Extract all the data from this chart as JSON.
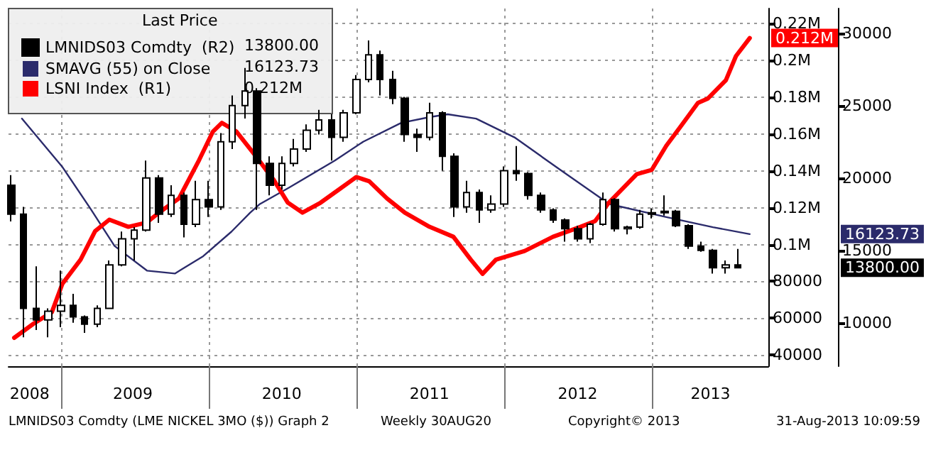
{
  "chart_data": {
    "type": "line",
    "legend_title": "Last Price",
    "legend": "top left",
    "grid": true,
    "xlim": [
      "2008-08-25",
      "2013-10-15"
    ],
    "xticks": [
      {
        "value": "2008-10-16",
        "label": "2008"
      },
      {
        "value": "2009-01-01",
        "label": null
      },
      {
        "value": "2009-06-28",
        "label": "2009"
      },
      {
        "value": "2010-01-01",
        "label": null
      },
      {
        "value": "2010-07-01",
        "label": "2010"
      },
      {
        "value": "2011-01-01",
        "label": null
      },
      {
        "value": "2011-07-01",
        "label": "2011"
      },
      {
        "value": "2012-01-01",
        "label": null
      },
      {
        "value": "2012-07-01",
        "label": "2012"
      },
      {
        "value": "2013-01-01",
        "label": null
      },
      {
        "value": "2013-05-25",
        "label": "2013"
      }
    ],
    "ylim": [
      34000,
      228000
    ],
    "yticks": [
      40000,
      60000,
      80000,
      {
        "value": 100000,
        "label": "0.1M"
      },
      {
        "value": 120000,
        "label": "0.12M"
      },
      {
        "value": 140000,
        "label": "0.14M"
      },
      {
        "value": 160000,
        "label": "0.16M"
      },
      {
        "value": 180000,
        "label": "0.18M"
      },
      {
        "value": 200000,
        "label": "0.2M"
      },
      {
        "value": 220000,
        "label": "0.22M"
      }
    ],
    "y2lim": [
      7000,
      31700
    ],
    "y2ticks": [
      10000,
      15000,
      20000,
      25000,
      30000
    ],
    "series": [
      {
        "name": "LMNIDS03 Comdty  (R2)",
        "type": "candlestick",
        "axis": "y2",
        "color": "#000000",
        "x": [
          "2008-09",
          "2008-10",
          "2008-11",
          "2008-12",
          "2009-01",
          "2009-02",
          "2009-03",
          "2009-04",
          "2009-05",
          "2009-06",
          "2009-07",
          "2009-08",
          "2009-09",
          "2009-10",
          "2009-11",
          "2009-12",
          "2010-01",
          "2010-02",
          "2010-03",
          "2010-04",
          "2010-05",
          "2010-06",
          "2010-07",
          "2010-08",
          "2010-09",
          "2010-10",
          "2010-11",
          "2010-12",
          "2011-01",
          "2011-02",
          "2011-03",
          "2011-04",
          "2011-05",
          "2011-06",
          "2011-07",
          "2011-08",
          "2011-09",
          "2011-10",
          "2011-11",
          "2011-12",
          "2012-01",
          "2012-02",
          "2012-03",
          "2012-04",
          "2012-05",
          "2012-06",
          "2012-07",
          "2012-08",
          "2012-09",
          "2012-10",
          "2012-11",
          "2012-12",
          "2013-01",
          "2013-02",
          "2013-03",
          "2013-04",
          "2013-05",
          "2013-06",
          "2013-07",
          "2013-08"
        ],
        "ohlc": [
          [
            19500,
            20200,
            17000,
            17500
          ],
          [
            17500,
            18000,
            9000,
            11000
          ],
          [
            11000,
            13900,
            9500,
            10200
          ],
          [
            10200,
            11000,
            9000,
            10800
          ],
          [
            10800,
            13600,
            9700,
            11200
          ],
          [
            11200,
            12000,
            10000,
            10400
          ],
          [
            10400,
            10500,
            9300,
            9900
          ],
          [
            9900,
            11200,
            9700,
            11000
          ],
          [
            11000,
            14300,
            11000,
            14000
          ],
          [
            14000,
            16300,
            13900,
            15800
          ],
          [
            15800,
            16600,
            14300,
            16400
          ],
          [
            16400,
            21200,
            16300,
            20000
          ],
          [
            20000,
            20200,
            16900,
            17500
          ],
          [
            17500,
            19500,
            17300,
            18800
          ],
          [
            18800,
            19000,
            15900,
            16800
          ],
          [
            16800,
            19800,
            16600,
            18500
          ],
          [
            18500,
            19800,
            17300,
            18000
          ],
          [
            18000,
            23100,
            17800,
            22500
          ],
          [
            22500,
            25700,
            22000,
            25000
          ],
          [
            25000,
            27600,
            24100,
            26000
          ],
          [
            26000,
            26200,
            17800,
            21000
          ],
          [
            21000,
            21500,
            18800,
            19500
          ],
          [
            19500,
            21500,
            19200,
            21000
          ],
          [
            21000,
            22700,
            20800,
            22000
          ],
          [
            22000,
            23700,
            21800,
            23300
          ],
          [
            23300,
            24700,
            23000,
            24000
          ],
          [
            24000,
            24400,
            21200,
            22800
          ],
          [
            22800,
            24700,
            22500,
            24500
          ],
          [
            24500,
            27100,
            24400,
            26800
          ],
          [
            26800,
            29500,
            26600,
            28500
          ],
          [
            28500,
            28800,
            25700,
            26800
          ],
          [
            26800,
            27400,
            25100,
            25500
          ],
          [
            25500,
            25600,
            22500,
            23000
          ],
          [
            23000,
            23400,
            21800,
            22800
          ],
          [
            22800,
            25200,
            22600,
            24500
          ],
          [
            24500,
            24600,
            20500,
            21500
          ],
          [
            21500,
            21700,
            17300,
            18000
          ],
          [
            18000,
            19800,
            17600,
            19000
          ],
          [
            19000,
            19200,
            16900,
            17800
          ],
          [
            17800,
            18800,
            17600,
            18200
          ],
          [
            18200,
            20800,
            18000,
            20500
          ],
          [
            20500,
            22200,
            19800,
            20300
          ],
          [
            20300,
            20400,
            18500,
            18800
          ],
          [
            18800,
            19000,
            17600,
            17800
          ],
          [
            17800,
            17900,
            16900,
            17100
          ],
          [
            17100,
            17200,
            15600,
            16500
          ],
          [
            16500,
            16700,
            15600,
            15800
          ],
          [
            15800,
            16900,
            15500,
            16800
          ],
          [
            16800,
            19000,
            16700,
            18500
          ],
          [
            18500,
            18600,
            16300,
            16500
          ],
          [
            16500,
            16700,
            16100,
            16600
          ],
          [
            16600,
            17800,
            16500,
            17500
          ],
          [
            17500,
            17900,
            17200,
            17600
          ],
          [
            17600,
            18800,
            17400,
            17700
          ],
          [
            17700,
            17800,
            16600,
            16700
          ],
          [
            16700,
            16800,
            15100,
            15300
          ],
          [
            15300,
            15600,
            14900,
            15000
          ],
          [
            15000,
            15100,
            13400,
            13800
          ],
          [
            13800,
            14300,
            13400,
            14000
          ],
          [
            14000,
            15100,
            13800,
            13800
          ]
        ]
      },
      {
        "name": "SMAVG (55) on Close",
        "type": "line",
        "axis": "y2",
        "color": "#2b2b6b",
        "x": [
          "2008-09-27",
          "2009-01-04",
          "2009-03-15",
          "2009-05-14",
          "2009-08-02",
          "2009-10-10",
          "2009-12-19",
          "2010-02-27",
          "2010-04-14",
          "2010-05-08",
          "2010-07-17",
          "2010-11-09",
          "2011-01-18",
          "2011-04-22",
          "2011-07-01",
          "2011-08-15",
          "2011-10-24",
          "2012-01-27",
          "2012-05-22",
          "2012-09-17",
          "2013-02-05",
          "2013-05-31",
          "2013-08-30"
        ],
        "values": [
          24100,
          20800,
          17900,
          15300,
          13600,
          13400,
          14600,
          16300,
          17600,
          18200,
          19300,
          21200,
          22500,
          23800,
          24200,
          24400,
          24100,
          22800,
          20500,
          18200,
          17300,
          16600,
          16123.73
        ]
      },
      {
        "name": "LSNI Index  (R1)",
        "color": "#ff0000",
        "x": [
          "2008-09-08",
          "2008-10-26",
          "2008-12-10",
          "2009-01-05",
          "2009-02-19",
          "2009-03-27",
          "2009-05-01",
          "2009-06-17",
          "2009-08-01",
          "2009-09-05",
          "2009-10-20",
          "2009-12-09",
          "2010-01-12",
          "2010-02-03",
          "2010-03-11",
          "2010-04-27",
          "2010-06-11",
          "2010-07-16",
          "2010-08-21",
          "2010-10-05",
          "2010-11-23",
          "2011-01-01",
          "2011-02-02",
          "2011-03-18",
          "2011-05-01",
          "2011-07-01",
          "2011-08-29",
          "2011-10-11",
          "2011-11-09",
          "2011-12-12",
          "2012-02-21",
          "2012-05-01",
          "2012-07-08",
          "2012-08-13",
          "2012-09-16",
          "2012-11-24",
          "2012-12-31",
          "2013-02-05",
          "2013-03-11",
          "2013-04-24",
          "2013-05-18",
          "2013-07-02",
          "2013-07-27",
          "2013-08-30"
        ],
        "values": [
          49400,
          57100,
          63300,
          78700,
          91800,
          107300,
          113500,
          109600,
          111900,
          118000,
          125000,
          145900,
          161300,
          166000,
          161300,
          148200,
          135100,
          122700,
          117300,
          122700,
          130400,
          136600,
          134300,
          125000,
          117300,
          109600,
          104200,
          91800,
          84100,
          91800,
          96500,
          104200,
          109600,
          112700,
          122700,
          138200,
          140500,
          153600,
          163600,
          176800,
          179100,
          189100,
          202200,
          212000
        ]
      }
    ],
    "annotations": [
      "13800.00",
      "16123.73",
      "0.212M",
      "LMNIDS03 Comdty (LME NICKEL 3MO ($)) Graph 2",
      "Weekly 30AUG20",
      "Copyright© 2013",
      "31-Aug-2013 10:09:59"
    ]
  }
}
